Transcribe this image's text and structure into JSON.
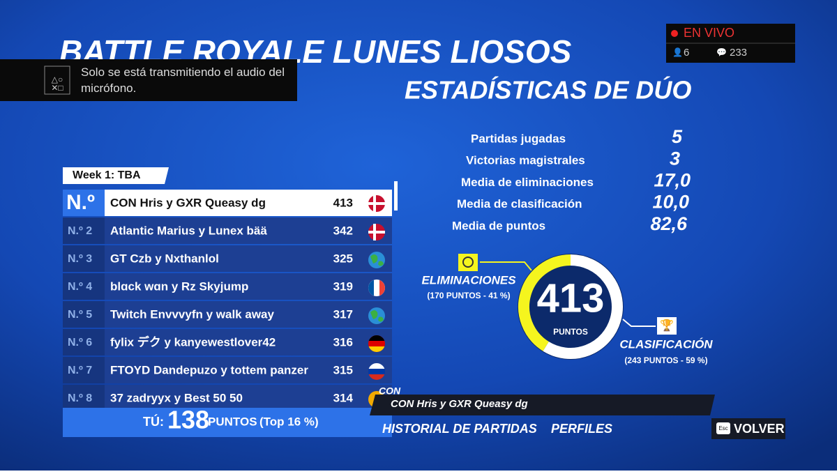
{
  "live": {
    "label": "EN VIVO",
    "viewers": 6,
    "comments": 233
  },
  "notification": {
    "text": "Solo se está transmitiendo el audio del micrófono."
  },
  "title": "BATTLE ROYALE LUNES LIOSOS",
  "subtitle": "ESTADÍSTICAS DE DÚO",
  "leaderboard": {
    "week": "Week 1: TBA",
    "rows": [
      {
        "rank": "N.º",
        "team": "CON Hris y GXR Queasy dg",
        "points": 413
      },
      {
        "rank": "N.º 2",
        "team": "Atlantic Marius y Lunex bää",
        "points": 342
      },
      {
        "rank": "N.º 3",
        "team": "GT Czb y Nxthanlol",
        "points": 325
      },
      {
        "rank": "N.º 4",
        "team": "blɑck wɑn y Rz Skyjump",
        "points": 319
      },
      {
        "rank": "N.º 5",
        "team": "Twitch Envvvyfn y walk away",
        "points": 317
      },
      {
        "rank": "N.º 6",
        "team": "fylix デク y kanyewestlover42",
        "points": 316
      },
      {
        "rank": "N.º 7",
        "team": "FTOYD Dandepuzo y tottem panzer",
        "points": 315
      },
      {
        "rank": "N.º 8",
        "team": "37 zadryyx y Best 50 50",
        "points": 314
      }
    ],
    "you": {
      "label": "TÚ:",
      "points": 138,
      "unit": "PUNTOS",
      "top": "(Top 16 %)"
    }
  },
  "stats": [
    {
      "label": "Partidas jugadas",
      "value": "5"
    },
    {
      "label": "Victorias magistrales",
      "value": "3"
    },
    {
      "label": "Media de eliminaciones",
      "value": "17,0"
    },
    {
      "label": "Media de clasificación",
      "value": "10,0"
    },
    {
      "label": "Media de puntos",
      "value": "82,6"
    }
  ],
  "score": {
    "total": 413,
    "unit": "PUNTOS",
    "parts": [
      {
        "label": "ELIMINACIONES",
        "value": 170,
        "value_label": "(170 PUNTOS - 41 %)",
        "color": "#f5f51e"
      },
      {
        "label": "CLASIFICACIÓN",
        "value": 243,
        "value_label": "(243 PUNTOS - 59 %)",
        "color": "#ffffff"
      }
    ]
  },
  "selected": {
    "tag": "CON",
    "team": "CON Hris y GXR Queasy dg"
  },
  "menu": {
    "items": [
      "HISTORIAL DE PARTIDAS",
      "PERFILES"
    ],
    "key": "Esc",
    "back": "VOLVER"
  }
}
